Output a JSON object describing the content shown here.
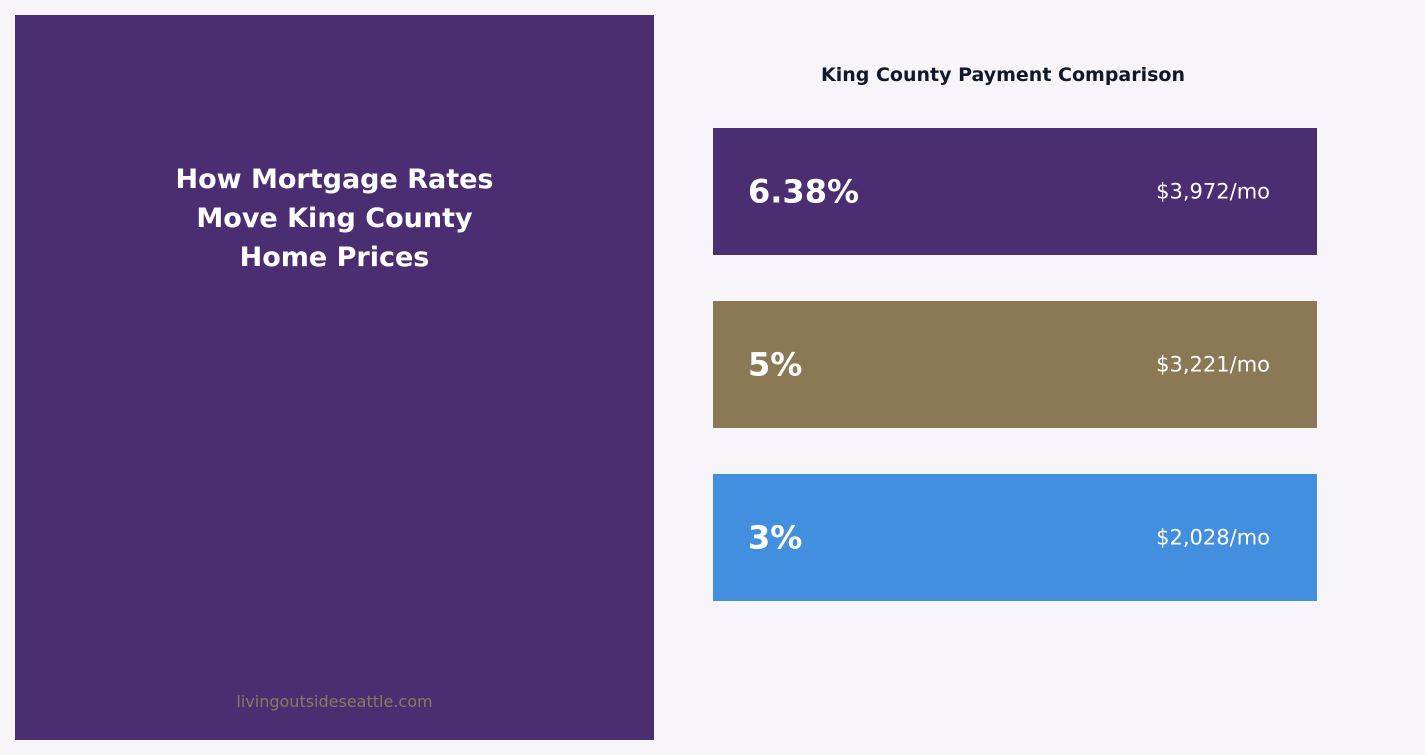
{
  "left_panel": {
    "title_lines": [
      "How Mortgage Rates",
      "Move King County",
      "Home Prices"
    ],
    "site": "livingoutsideseattle.com",
    "background": "#4b2e72",
    "site_color": "#8b7a5a"
  },
  "chart_data": {
    "type": "bar",
    "title": "King County Payment Comparison",
    "categories": [
      "6.38%",
      "5%",
      "3%"
    ],
    "values": [
      3972,
      3221,
      2028
    ],
    "value_labels": [
      "$3,972/mo",
      "$3,221/mo",
      "$2,028/mo"
    ],
    "colors": [
      "#4b2e72",
      "#8b7855",
      "#428edf"
    ]
  }
}
